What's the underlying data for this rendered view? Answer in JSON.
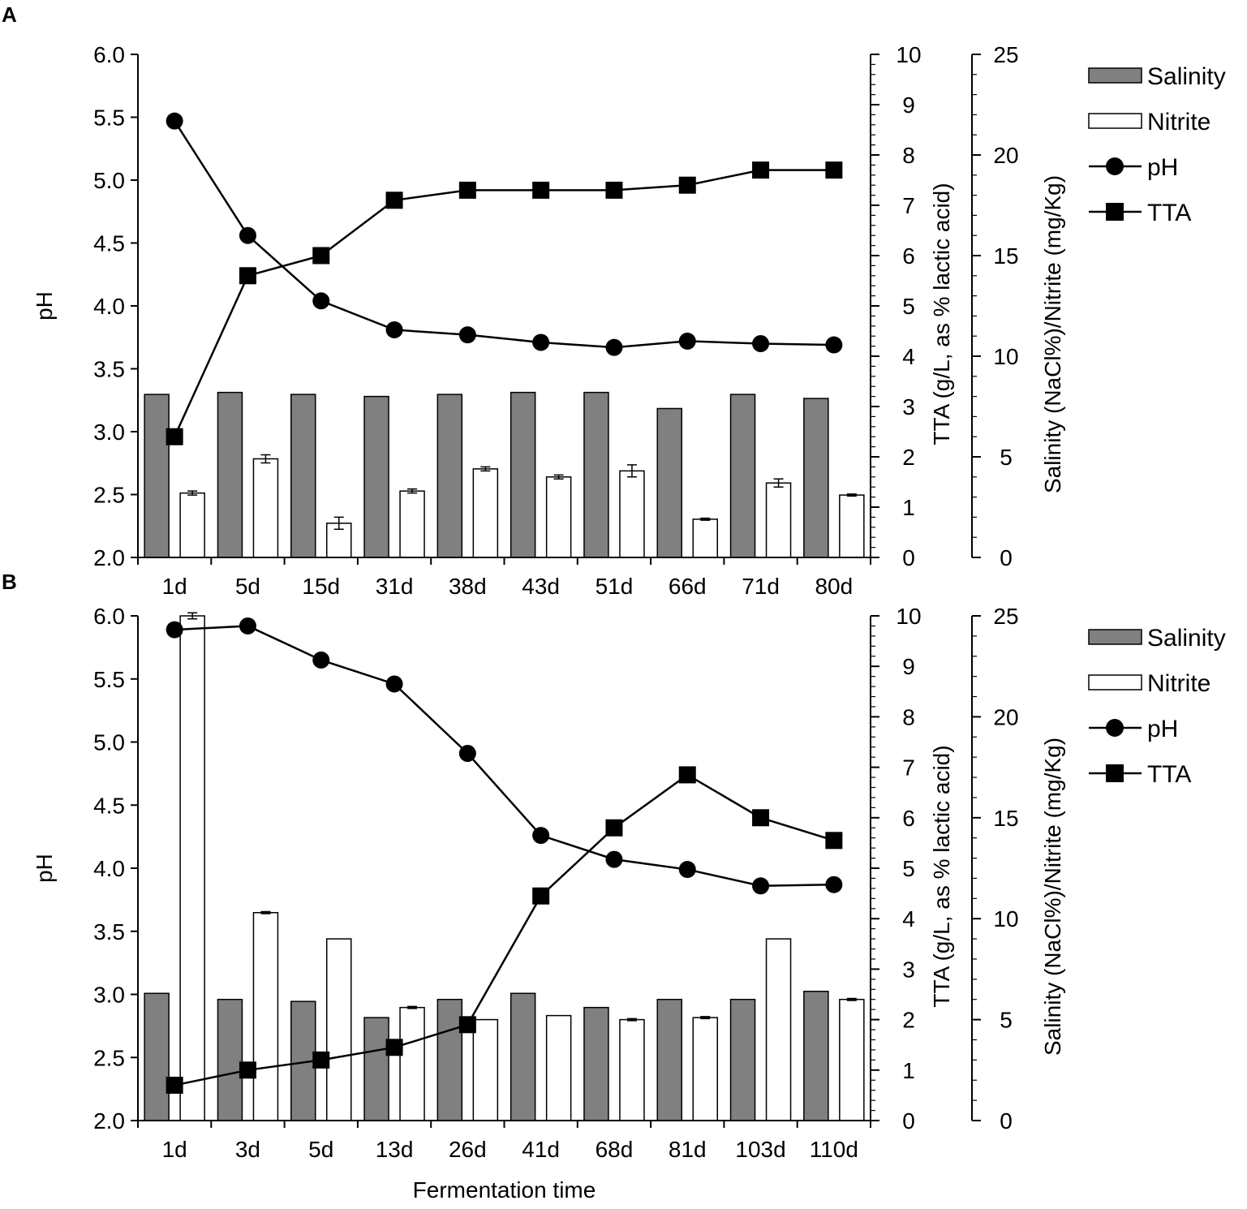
{
  "chart_data": [
    {
      "panel": "A",
      "type": "bar",
      "categories": [
        "1d",
        "5d",
        "15d",
        "31d",
        "38d",
        "43d",
        "51d",
        "66d",
        "71d",
        "80d"
      ],
      "series": [
        {
          "name": "Salinity",
          "kind": "bar",
          "axis": "right2",
          "color": "#808080",
          "values": [
            8.1,
            8.2,
            8.1,
            8.0,
            8.1,
            8.2,
            8.2,
            7.4,
            8.1,
            7.9
          ]
        },
        {
          "name": "Nitrite",
          "kind": "bar",
          "axis": "right2",
          "color": "#ffffff",
          "values": [
            3.2,
            4.9,
            1.7,
            3.3,
            4.4,
            4.0,
            4.3,
            1.9,
            3.7,
            3.1
          ],
          "errors": [
            0.1,
            0.2,
            0.3,
            0.1,
            0.1,
            0.1,
            0.3,
            0.05,
            0.2,
            0.05
          ]
        },
        {
          "name": "pH",
          "kind": "line",
          "marker": "circle",
          "axis": "left",
          "values": [
            5.47,
            4.56,
            4.04,
            3.81,
            3.77,
            3.71,
            3.67,
            3.72,
            3.7,
            3.69
          ]
        },
        {
          "name": "TTA",
          "kind": "line",
          "marker": "square",
          "axis": "right1",
          "values": [
            2.4,
            5.6,
            6.0,
            7.1,
            7.3,
            7.3,
            7.3,
            7.4,
            7.7,
            7.7
          ],
          "errors": [
            0.15,
            0.15,
            0.15,
            0.0,
            0.15,
            0.15,
            0.15,
            0.0,
            0.15,
            0.15
          ]
        }
      ],
      "ylabel": "pH",
      "ylim": [
        2.0,
        6.0
      ],
      "yticks": [
        "2.0",
        "2.5",
        "3.0",
        "3.5",
        "4.0",
        "4.5",
        "5.0",
        "5.5",
        "6.0"
      ],
      "y2label": "TTA (g/L, as % lactic acid)",
      "y2lim": [
        0,
        10
      ],
      "y2ticks": [
        "0",
        "1",
        "2",
        "3",
        "4",
        "5",
        "6",
        "7",
        "8",
        "9",
        "10"
      ],
      "y3label": "Salinity (NaCl%)/Nitrite (mg/Kg)",
      "y3lim": [
        0,
        25
      ],
      "y3ticks": [
        "0",
        "5",
        "10",
        "15",
        "20",
        "25"
      ],
      "xlabel": "",
      "legend": [
        "Salinity",
        "Nitrite",
        "pH",
        "TTA"
      ],
      "legend_position": "right"
    },
    {
      "panel": "B",
      "type": "bar",
      "categories": [
        "1d",
        "3d",
        "5d",
        "13d",
        "26d",
        "41d",
        "68d",
        "81d",
        "103d",
        "110d"
      ],
      "series": [
        {
          "name": "Salinity",
          "kind": "bar",
          "axis": "right2",
          "color": "#808080",
          "values": [
            6.3,
            6.0,
            5.9,
            5.1,
            6.0,
            6.3,
            5.6,
            6.0,
            6.0,
            6.4
          ]
        },
        {
          "name": "Nitrite",
          "kind": "bar",
          "axis": "right2",
          "color": "#ffffff",
          "values": [
            25.0,
            10.3,
            9.0,
            5.6,
            5.0,
            5.2,
            5.0,
            5.1,
            9.0,
            6.0
          ],
          "errors": [
            0.15,
            0.05,
            0.0,
            0.05,
            0.0,
            0.0,
            0.05,
            0.05,
            0.0,
            0.05
          ]
        },
        {
          "name": "pH",
          "kind": "line",
          "marker": "circle",
          "axis": "left",
          "values": [
            5.89,
            5.92,
            5.65,
            5.46,
            4.91,
            4.26,
            4.07,
            3.99,
            3.86,
            3.87
          ]
        },
        {
          "name": "TTA",
          "kind": "line",
          "marker": "square",
          "axis": "right1",
          "values": [
            0.7,
            1.0,
            1.2,
            1.45,
            1.9,
            4.45,
            5.8,
            6.85,
            6.0,
            5.55
          ],
          "errors": [
            0.15,
            0.0,
            0.15,
            0.0,
            0.05,
            0.0,
            0.0,
            0.15,
            0.15,
            0.15
          ]
        }
      ],
      "ylabel": "pH",
      "ylim": [
        2.0,
        6.0
      ],
      "yticks": [
        "2.0",
        "2.5",
        "3.0",
        "3.5",
        "4.0",
        "4.5",
        "5.0",
        "5.5",
        "6.0"
      ],
      "y2label": "TTA (g/L, as % lactic acid)",
      "y2lim": [
        0,
        10
      ],
      "y2ticks": [
        "0",
        "1",
        "2",
        "3",
        "4",
        "5",
        "6",
        "7",
        "8",
        "9",
        "10"
      ],
      "y3label": "Salinity (NaCl%)/Nitrite (mg/Kg)",
      "y3lim": [
        0,
        25
      ],
      "y3ticks": [
        "0",
        "5",
        "10",
        "15",
        "20",
        "25"
      ],
      "xlabel": "Fermentation time",
      "legend": [
        "Salinity",
        "Nitrite",
        "pH",
        "TTA"
      ],
      "legend_position": "right"
    }
  ]
}
